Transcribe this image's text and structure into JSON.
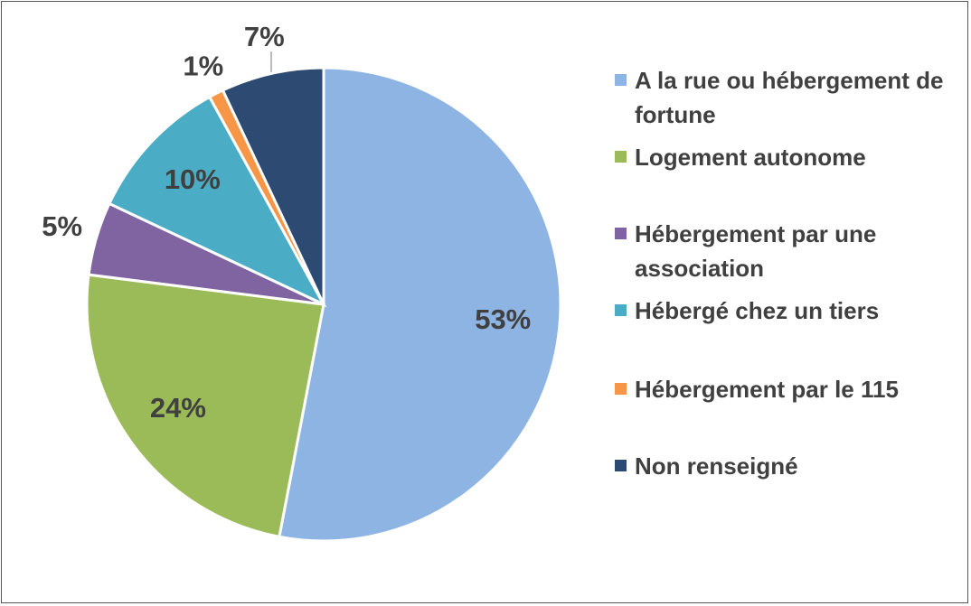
{
  "chart_data": {
    "type": "pie",
    "categories": [
      "A la rue ou hébergement de fortune",
      "Logement autonome",
      "Hébergement par une association",
      "Hébergé chez un tiers",
      "Hébergement par le 115",
      "Non renseigné"
    ],
    "values": [
      53,
      24,
      5,
      10,
      1,
      7
    ],
    "value_labels": [
      "53%",
      "24%",
      "5%",
      "10%",
      "1%",
      "7%"
    ],
    "colors": [
      "#8eb4e3",
      "#9bbb59",
      "#8064a2",
      "#4bacc6",
      "#f79646",
      "#2c4a72"
    ],
    "legend": "right"
  }
}
